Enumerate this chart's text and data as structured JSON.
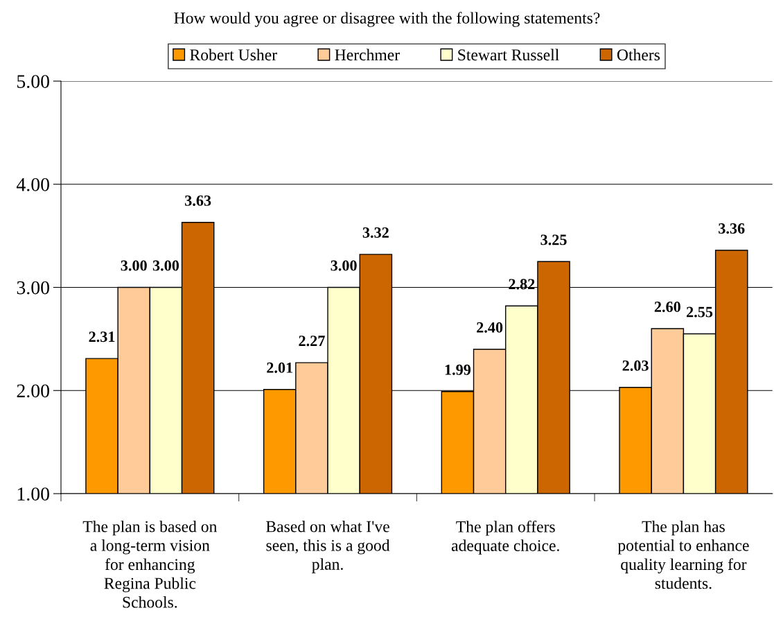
{
  "chart_data": {
    "type": "bar",
    "title": "How would you agree or disagree with the following statements?",
    "categories": [
      "The plan is based on\na long-term vision\nfor enhancing\nRegina Public\nSchools.",
      "Based on what I've\nseen, this is a good\nplan.",
      "The plan offers\nadequate choice.",
      "The plan has\npotential to enhance\nquality learning for\nstudents."
    ],
    "series": [
      {
        "name": "Robert Usher",
        "color": "#ff9900",
        "values": [
          2.31,
          2.01,
          1.99,
          2.03
        ],
        "value_labels": [
          "2.31",
          "2.01",
          "1.99",
          "2.03"
        ]
      },
      {
        "name": "Herchmer",
        "color": "#ffcc99",
        "values": [
          3.0,
          2.27,
          2.4,
          2.6
        ],
        "value_labels": [
          "3.00",
          "2.27",
          "2.40",
          "2.60"
        ]
      },
      {
        "name": "Stewart Russell",
        "color": "#ffffcc",
        "values": [
          3.0,
          3.0,
          2.82,
          2.55
        ],
        "value_labels": [
          "3.00",
          "3.00",
          "2.82",
          "2.55"
        ]
      },
      {
        "name": "Others",
        "color": "#cc6600",
        "values": [
          3.63,
          3.32,
          3.25,
          3.36
        ],
        "value_labels": [
          "3.63",
          "3.32",
          "3.25",
          "3.36"
        ]
      }
    ],
    "ylim": [
      1,
      5
    ],
    "yticks": [
      {
        "value": 1,
        "label": "1.00"
      },
      {
        "value": 2,
        "label": "2.00"
      },
      {
        "value": 3,
        "label": "3.00"
      },
      {
        "value": 4,
        "label": "4.00"
      },
      {
        "value": 5,
        "label": "5.00"
      }
    ],
    "grid": "y",
    "legend": "top"
  }
}
